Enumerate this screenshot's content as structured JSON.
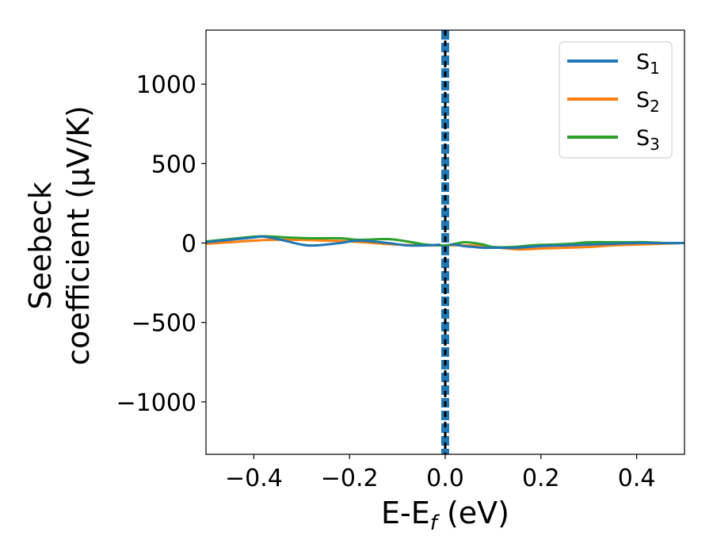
{
  "chart_data": {
    "type": "line",
    "xlabel_main": "E-E",
    "xlabel_sub": "f",
    "xlabel_unit": " (eV)",
    "ylabel_line1": "Seebeck",
    "ylabel_line2": "coefficient  (μV/K)",
    "xlim": [
      -0.5,
      0.5
    ],
    "ylim": [
      -1330,
      1340
    ],
    "xticks": [
      {
        "value": -0.4,
        "label": "−0.4"
      },
      {
        "value": -0.2,
        "label": "−0.2"
      },
      {
        "value": 0.0,
        "label": "0.0"
      },
      {
        "value": 0.2,
        "label": "0.2"
      },
      {
        "value": 0.4,
        "label": "0.4"
      }
    ],
    "yticks": [
      {
        "value": 1000,
        "label": "1000"
      },
      {
        "value": 500,
        "label": "500"
      },
      {
        "value": 0,
        "label": "0"
      },
      {
        "value": -500,
        "label": "−500"
      },
      {
        "value": -1000,
        "label": "−1000"
      }
    ],
    "grid": false,
    "legend_position": "top-right",
    "fermi_line": {
      "x": 0.0,
      "style": "dashed",
      "color": "#000000"
    },
    "series": [
      {
        "name": "S",
        "sub": "1",
        "color": "#1f77b4",
        "x": [
          -0.5,
          -0.45,
          -0.4,
          -0.38,
          -0.35,
          -0.3,
          -0.27,
          -0.22,
          -0.18,
          -0.12,
          -0.08,
          -0.04,
          -0.01,
          0.0,
          0.01,
          0.02,
          0.04,
          0.06,
          0.08,
          0.1,
          0.12,
          0.15,
          0.2,
          0.25,
          0.3,
          0.35,
          0.4,
          0.45,
          0.5
        ],
        "y": [
          5,
          20,
          35,
          40,
          25,
          -10,
          -15,
          0,
          15,
          0,
          -15,
          -15,
          -10,
          -1300,
          -10,
          -10,
          -20,
          -25,
          -30,
          -30,
          -30,
          -30,
          -20,
          -15,
          -10,
          -5,
          0,
          0,
          0
        ]
      },
      {
        "name": "S",
        "sub": "2",
        "color": "#ff7f0e",
        "x": [
          -0.5,
          -0.45,
          -0.4,
          -0.36,
          -0.3,
          -0.25,
          -0.2,
          -0.15,
          -0.1,
          -0.05,
          0.0,
          0.05,
          0.1,
          0.15,
          0.2,
          0.25,
          0.3,
          0.35,
          0.4,
          0.45,
          0.5
        ],
        "y": [
          -5,
          5,
          15,
          20,
          20,
          15,
          10,
          0,
          -10,
          -15,
          -15,
          -15,
          -25,
          -40,
          -35,
          -30,
          -25,
          -15,
          -10,
          -5,
          0
        ]
      },
      {
        "name": "S",
        "sub": "3",
        "color": "#2ca02c",
        "x": [
          -0.5,
          -0.45,
          -0.4,
          -0.37,
          -0.33,
          -0.28,
          -0.22,
          -0.18,
          -0.12,
          -0.08,
          -0.04,
          0.0,
          0.02,
          0.04,
          0.06,
          0.08,
          0.1,
          0.14,
          0.18,
          0.22,
          0.26,
          0.3,
          0.34,
          0.38,
          0.42,
          0.46,
          0.5
        ],
        "y": [
          10,
          25,
          40,
          42,
          35,
          30,
          30,
          20,
          25,
          10,
          -10,
          -15,
          -5,
          5,
          0,
          -10,
          -25,
          -25,
          -15,
          -10,
          -5,
          5,
          5,
          5,
          5,
          0,
          0
        ]
      }
    ]
  }
}
